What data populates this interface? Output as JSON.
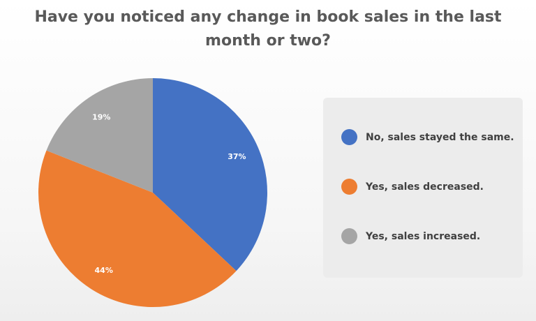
{
  "chart_data": {
    "type": "pie",
    "title_line1": "Have you noticed any change in book sales in the last",
    "title_line2": "month or two?",
    "slices": [
      {
        "label": "No, sales stayed the same.",
        "value": 37,
        "value_label": "37%",
        "color": "#4472C4"
      },
      {
        "label": "Yes, sales decreased.",
        "value": 44,
        "value_label": "44%",
        "color": "#ED7D31"
      },
      {
        "label": "Yes, sales increased.",
        "value": 19,
        "value_label": "19%",
        "color": "#A5A5A5"
      }
    ],
    "legend_position": "right"
  }
}
